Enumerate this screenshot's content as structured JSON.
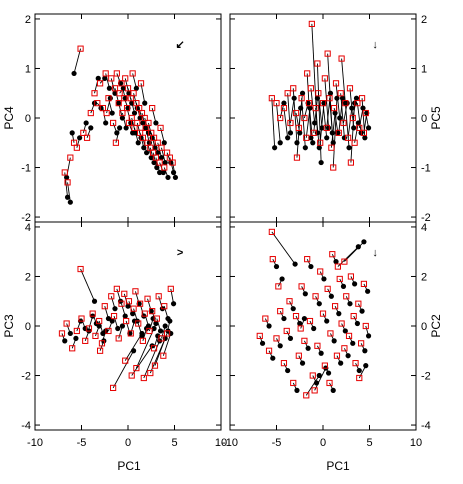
{
  "figure": {
    "xlabel": "PC1"
  },
  "colors": {
    "black_points": "#000000",
    "red_squares": "#e60000",
    "arrow_green": "#22dd22",
    "line": "#000000"
  },
  "chart_data": [
    {
      "type": "scatter",
      "panel": "top-left",
      "xlabel": "",
      "ylabel": "PC4",
      "xlim": [
        -10,
        10
      ],
      "ylim": [
        -2.1,
        2.1
      ],
      "xticks": [
        -10,
        -5,
        0,
        5,
        10
      ],
      "yticks": [
        -2,
        -1,
        0,
        1,
        2
      ],
      "x_tick_labels_shown": false,
      "y_axis_side": "left",
      "arrow_glyph": "↙",
      "pairs": [
        [
          -6.8,
          -1.1,
          -6.5,
          -1.6
        ],
        [
          -6.5,
          -1.3,
          -6.2,
          -1.7
        ],
        [
          -6.2,
          -0.8,
          -6.6,
          -1.2
        ],
        [
          -5.8,
          -0.5,
          -6.0,
          -0.3
        ],
        [
          -5.5,
          -0.6,
          -5.2,
          -0.4
        ],
        [
          -5.1,
          1.4,
          -5.8,
          0.9
        ],
        [
          -4.8,
          -0.3,
          -4.5,
          -0.1
        ],
        [
          -4.4,
          -0.4,
          -4.0,
          -0.2
        ],
        [
          -4.0,
          0.1,
          -3.6,
          0.3
        ],
        [
          -3.6,
          0.5,
          -3.2,
          0.8
        ],
        [
          -3.3,
          0.3,
          -2.9,
          0.2
        ],
        [
          -3.0,
          0.7,
          -2.5,
          0.8
        ],
        [
          -2.7,
          0.2,
          -2.4,
          -0.1
        ],
        [
          -2.4,
          0.9,
          -2.0,
          0.6
        ],
        [
          -2.1,
          0.4,
          -1.7,
          0.1
        ],
        [
          -1.8,
          0.8,
          -1.4,
          0.5
        ],
        [
          -1.6,
          -0.1,
          -1.2,
          -0.3
        ],
        [
          -1.4,
          0.6,
          -1.0,
          0.3
        ],
        [
          -1.2,
          0.9,
          -0.8,
          0.7
        ],
        [
          -1.0,
          0.3,
          -0.6,
          0.0
        ],
        [
          -0.9,
          0.5,
          -0.5,
          0.6
        ],
        [
          -0.7,
          0.7,
          -0.3,
          0.4
        ],
        [
          -0.6,
          0.1,
          -0.2,
          -0.2
        ],
        [
          -0.4,
          0.4,
          0.0,
          0.2
        ],
        [
          -0.3,
          0.8,
          0.1,
          0.5
        ],
        [
          -0.1,
          0.2,
          0.3,
          -0.1
        ],
        [
          0.0,
          0.6,
          0.4,
          0.3
        ],
        [
          0.1,
          -0.1,
          0.5,
          -0.3
        ],
        [
          0.3,
          0.4,
          0.7,
          0.1
        ],
        [
          0.4,
          0.0,
          0.8,
          -0.3
        ],
        [
          0.6,
          0.5,
          1.0,
          0.2
        ],
        [
          0.7,
          -0.2,
          1.1,
          -0.5
        ],
        [
          0.9,
          0.3,
          1.3,
          0.0
        ],
        [
          1.0,
          -0.1,
          1.4,
          -0.4
        ],
        [
          1.2,
          0.2,
          1.6,
          -0.1
        ],
        [
          1.3,
          -0.3,
          1.7,
          -0.6
        ],
        [
          1.5,
          0.1,
          1.9,
          -0.2
        ],
        [
          1.6,
          -0.4,
          2.0,
          -0.7
        ],
        [
          1.8,
          0.0,
          2.2,
          -0.3
        ],
        [
          1.9,
          -0.2,
          2.3,
          -0.5
        ],
        [
          2.1,
          -0.5,
          2.5,
          -0.8
        ],
        [
          2.2,
          -0.1,
          2.6,
          -0.4
        ],
        [
          2.4,
          -0.6,
          2.8,
          -0.9
        ],
        [
          2.5,
          -0.3,
          2.9,
          -0.6
        ],
        [
          2.7,
          -0.7,
          3.1,
          -1.0
        ],
        [
          2.8,
          -0.4,
          3.2,
          -0.7
        ],
        [
          3.0,
          -0.8,
          3.4,
          -1.1
        ],
        [
          3.2,
          -0.5,
          3.6,
          -0.8
        ],
        [
          3.4,
          -0.9,
          3.8,
          -1.1
        ],
        [
          3.6,
          -0.6,
          4.0,
          -0.9
        ],
        [
          3.9,
          -1.0,
          4.3,
          -1.2
        ],
        [
          4.2,
          -0.7,
          4.6,
          -0.9
        ],
        [
          4.5,
          -0.8,
          4.9,
          -1.1
        ],
        [
          4.8,
          -0.9,
          5.1,
          -1.2
        ],
        [
          -2.3,
          0.1,
          -1.9,
          0.4
        ],
        [
          -1.3,
          -0.5,
          -0.9,
          -0.2
        ],
        [
          0.5,
          0.9,
          0.9,
          0.6
        ],
        [
          1.4,
          0.7,
          1.8,
          0.3
        ],
        [
          2.6,
          0.2,
          3.0,
          -0.1
        ],
        [
          3.5,
          -0.2,
          3.9,
          -0.5
        ]
      ]
    },
    {
      "type": "scatter",
      "panel": "top-right",
      "xlabel": "",
      "ylabel": "PC5",
      "xlim": [
        -10,
        10
      ],
      "ylim": [
        -2.1,
        2.1
      ],
      "xticks": [
        -10,
        -5,
        0,
        5,
        10
      ],
      "yticks": [
        -2,
        -1,
        0,
        1,
        2
      ],
      "x_tick_labels_shown": false,
      "y_axis_side": "right",
      "arrow_glyph": "↓",
      "pairs": [
        [
          -1.2,
          1.9,
          -0.6,
          -0.3
        ],
        [
          -5.5,
          0.4,
          -5.2,
          -0.6
        ],
        [
          -5.0,
          0.3,
          -4.6,
          -0.5
        ],
        [
          -4.6,
          0.0,
          -4.2,
          0.3
        ],
        [
          -4.2,
          0.2,
          -3.8,
          -0.4
        ],
        [
          -3.8,
          0.5,
          -3.5,
          -0.3
        ],
        [
          -3.5,
          -0.1,
          -3.1,
          0.4
        ],
        [
          -3.2,
          0.6,
          -2.8,
          -0.5
        ],
        [
          -2.9,
          0.1,
          -2.5,
          -0.3
        ],
        [
          -2.6,
          -0.2,
          -2.2,
          0.5
        ],
        [
          -2.3,
          0.4,
          -1.9,
          -0.6
        ],
        [
          -2.0,
          0.0,
          -1.6,
          0.3
        ],
        [
          -1.8,
          -0.4,
          -1.4,
          0.2
        ],
        [
          -1.5,
          0.3,
          -1.1,
          -0.5
        ],
        [
          -1.3,
          0.6,
          -0.9,
          -0.1
        ],
        [
          -1.0,
          -0.3,
          -0.6,
          0.4
        ],
        [
          -0.8,
          0.2,
          -0.4,
          -0.6
        ],
        [
          -0.5,
          0.5,
          -0.1,
          -0.2
        ],
        [
          -0.3,
          -0.5,
          0.1,
          0.3
        ],
        [
          0.0,
          0.3,
          0.4,
          -0.4
        ],
        [
          0.2,
          0.8,
          0.6,
          -0.2
        ],
        [
          0.4,
          -0.2,
          0.8,
          0.5
        ],
        [
          0.7,
          0.4,
          1.1,
          -0.5
        ],
        [
          0.9,
          -0.6,
          1.3,
          0.1
        ],
        [
          1.2,
          0.2,
          1.6,
          -0.3
        ],
        [
          1.4,
          0.7,
          1.8,
          0.0
        ],
        [
          1.7,
          -0.3,
          2.1,
          0.4
        ],
        [
          1.9,
          0.5,
          2.3,
          -0.4
        ],
        [
          2.2,
          -0.1,
          2.6,
          0.3
        ],
        [
          2.4,
          0.3,
          2.8,
          -0.6
        ],
        [
          2.7,
          -0.4,
          3.1,
          0.2
        ],
        [
          2.9,
          0.6,
          3.3,
          -0.2
        ],
        [
          3.2,
          0.0,
          3.6,
          0.4
        ],
        [
          3.4,
          -0.5,
          3.8,
          -0.1
        ],
        [
          3.7,
          0.3,
          4.1,
          -0.3
        ],
        [
          3.9,
          -0.2,
          4.3,
          0.2
        ],
        [
          4.2,
          0.4,
          4.5,
          -0.4
        ],
        [
          4.4,
          -0.3,
          4.7,
          0.1
        ],
        [
          4.6,
          0.1,
          4.9,
          -0.2
        ],
        [
          0.5,
          1.3,
          1.0,
          -0.3
        ],
        [
          -0.6,
          1.1,
          -0.2,
          -0.9
        ],
        [
          1.1,
          -1.0,
          1.5,
          0.4
        ],
        [
          2.0,
          1.2,
          2.4,
          0.3
        ],
        [
          -2.8,
          -0.8,
          -2.4,
          0.2
        ],
        [
          3.0,
          -0.9,
          3.4,
          0.3
        ],
        [
          -1.7,
          0.9,
          -1.3,
          -0.4
        ]
      ]
    },
    {
      "type": "scatter",
      "panel": "bottom-left",
      "xlabel": "PC1",
      "ylabel": "PC3",
      "xlim": [
        -10,
        10
      ],
      "ylim": [
        -4.2,
        4.2
      ],
      "xticks": [
        -10,
        -5,
        0,
        5,
        10
      ],
      "yticks": [
        -4,
        -2,
        0,
        2,
        4
      ],
      "x_tick_labels_shown": true,
      "y_axis_side": "left",
      "arrow_glyph": ">",
      "pairs": [
        [
          -5.1,
          2.3,
          -3.6,
          1.0
        ],
        [
          -7.1,
          -0.3,
          -6.8,
          -0.6
        ],
        [
          -6.6,
          0.1,
          -6.2,
          -0.3
        ],
        [
          -6.0,
          -0.9,
          -5.6,
          -0.5
        ],
        [
          -5.5,
          -0.2,
          -5.1,
          0.2
        ],
        [
          -5.0,
          0.3,
          -4.6,
          -0.1
        ],
        [
          -4.6,
          -0.6,
          -4.2,
          -0.2
        ],
        [
          -4.2,
          -0.1,
          -3.8,
          0.4
        ],
        [
          -3.8,
          0.5,
          -3.4,
          0.1
        ],
        [
          -3.5,
          -0.4,
          -3.1,
          0.0
        ],
        [
          -3.1,
          0.2,
          -2.7,
          -0.3
        ],
        [
          -2.8,
          -0.7,
          -2.4,
          -0.2
        ],
        [
          -2.5,
          0.8,
          -2.1,
          0.3
        ],
        [
          -2.1,
          -0.2,
          -1.7,
          0.2
        ],
        [
          -1.8,
          1.2,
          -1.4,
          0.7
        ],
        [
          -1.5,
          0.4,
          -1.1,
          -0.1
        ],
        [
          -1.2,
          1.5,
          -0.8,
          1.0
        ],
        [
          -1.0,
          -0.5,
          -0.6,
          0.0
        ],
        [
          -0.7,
          0.9,
          -0.3,
          0.4
        ],
        [
          -0.4,
          1.3,
          0.0,
          0.8
        ],
        [
          -0.2,
          0.2,
          0.2,
          -0.3
        ],
        [
          0.1,
          1.0,
          0.5,
          0.5
        ],
        [
          0.3,
          -0.3,
          0.7,
          0.2
        ],
        [
          0.6,
          0.7,
          1.0,
          0.2
        ],
        [
          0.8,
          1.4,
          1.2,
          0.9
        ],
        [
          1.1,
          0.1,
          1.5,
          -0.4
        ],
        [
          1.3,
          0.9,
          1.7,
          0.4
        ],
        [
          1.6,
          -0.6,
          2.0,
          -0.1
        ],
        [
          1.8,
          0.5,
          2.2,
          0.0
        ],
        [
          2.1,
          1.1,
          2.5,
          0.6
        ],
        [
          2.3,
          -0.2,
          2.7,
          0.3
        ],
        [
          2.6,
          0.6,
          3.0,
          0.1
        ],
        [
          2.8,
          -0.9,
          3.2,
          -0.4
        ],
        [
          3.1,
          0.3,
          3.5,
          -0.2
        ],
        [
          3.3,
          1.2,
          3.7,
          0.7
        ],
        [
          3.6,
          -0.5,
          4.0,
          0.0
        ],
        [
          3.9,
          0.8,
          4.3,
          0.3
        ],
        [
          4.2,
          -0.3,
          4.5,
          0.2
        ],
        [
          4.6,
          1.5,
          4.9,
          0.9
        ],
        [
          -1.6,
          -2.5,
          0.6,
          -1.0
        ],
        [
          0.4,
          -2.0,
          2.6,
          -0.8
        ],
        [
          1.7,
          -2.1,
          3.4,
          -0.6
        ],
        [
          2.4,
          -1.9,
          4.0,
          -0.5
        ],
        [
          2.9,
          -1.6,
          4.3,
          -0.2
        ],
        [
          -0.3,
          -1.4,
          1.5,
          -0.3
        ],
        [
          0.9,
          -1.7,
          2.8,
          -0.1
        ],
        [
          -3.0,
          -1.0,
          -2.6,
          -0.6
        ],
        [
          3.8,
          -1.2,
          4.6,
          -0.3
        ]
      ]
    },
    {
      "type": "scatter",
      "panel": "bottom-right",
      "xlabel": "PC1",
      "ylabel": "PC2",
      "xlim": [
        -10,
        10
      ],
      "ylim": [
        -4.2,
        4.2
      ],
      "xticks": [
        -10,
        -5,
        0,
        5,
        10
      ],
      "yticks": [
        -4,
        -2,
        0,
        2,
        4
      ],
      "x_tick_labels_shown": true,
      "y_axis_side": "right",
      "arrow_glyph": "↓",
      "pairs": [
        [
          -5.5,
          3.8,
          -3.0,
          2.5
        ],
        [
          -6.8,
          -0.4,
          -6.5,
          -0.7
        ],
        [
          -6.2,
          0.3,
          -5.8,
          0.0
        ],
        [
          -5.8,
          -1.0,
          -5.4,
          -1.3
        ],
        [
          -5.4,
          2.7,
          -5.0,
          2.4
        ],
        [
          -5.0,
          -0.5,
          -4.6,
          -0.8
        ],
        [
          -4.6,
          0.6,
          -4.2,
          0.3
        ],
        [
          -4.2,
          -1.5,
          -3.8,
          -1.8
        ],
        [
          -3.9,
          -0.2,
          -3.5,
          -0.5
        ],
        [
          -3.6,
          1.0,
          -3.2,
          0.7
        ],
        [
          -3.2,
          -2.3,
          -2.8,
          -2.6
        ],
        [
          -2.9,
          0.4,
          -2.5,
          0.1
        ],
        [
          -2.6,
          -1.2,
          -2.2,
          -1.5
        ],
        [
          -2.3,
          1.6,
          -1.9,
          1.3
        ],
        [
          -2.0,
          -0.6,
          -1.6,
          -0.9
        ],
        [
          -1.7,
          2.7,
          -1.3,
          2.4
        ],
        [
          -1.4,
          0.2,
          -1.0,
          -0.1
        ],
        [
          -1.1,
          -2.0,
          -0.7,
          -2.3
        ],
        [
          -0.8,
          1.2,
          -0.4,
          0.9
        ],
        [
          -0.6,
          -0.8,
          -0.2,
          -1.1
        ],
        [
          -0.3,
          2.2,
          0.1,
          1.9
        ],
        [
          0.0,
          0.5,
          0.4,
          0.2
        ],
        [
          0.2,
          -1.6,
          0.6,
          -1.9
        ],
        [
          0.5,
          1.5,
          0.9,
          1.2
        ],
        [
          0.8,
          -0.3,
          1.2,
          -0.6
        ],
        [
          1.0,
          2.9,
          1.4,
          2.6
        ],
        [
          1.3,
          0.8,
          1.7,
          0.5
        ],
        [
          1.5,
          -1.2,
          1.9,
          -1.5
        ],
        [
          1.8,
          1.9,
          2.2,
          1.6
        ],
        [
          2.0,
          0.1,
          2.4,
          -0.2
        ],
        [
          2.3,
          -0.9,
          2.7,
          -1.2
        ],
        [
          2.5,
          1.2,
          2.9,
          0.9
        ],
        [
          2.8,
          -0.4,
          3.2,
          -0.7
        ],
        [
          3.0,
          2.0,
          3.4,
          1.7
        ],
        [
          3.3,
          0.4,
          3.7,
          0.1
        ],
        [
          3.5,
          -1.5,
          3.9,
          -1.8
        ],
        [
          3.8,
          0.9,
          4.2,
          0.6
        ],
        [
          4.1,
          -0.7,
          4.5,
          -1.0
        ],
        [
          4.4,
          1.7,
          4.8,
          1.4
        ],
        [
          1.6,
          2.4,
          3.8,
          3.2
        ],
        [
          2.3,
          2.6,
          4.4,
          3.4
        ],
        [
          -1.8,
          -2.8,
          -0.4,
          -2.0
        ],
        [
          -0.9,
          -2.6,
          0.3,
          -1.7
        ],
        [
          3.9,
          -2.1,
          4.6,
          -1.6
        ],
        [
          -4.8,
          1.6,
          -4.4,
          1.9
        ],
        [
          0.7,
          -2.3,
          1.1,
          -2.6
        ],
        [
          -2.4,
          -0.1,
          -2.0,
          0.3
        ],
        [
          4.6,
          0.0,
          4.9,
          -0.4
        ]
      ]
    }
  ]
}
